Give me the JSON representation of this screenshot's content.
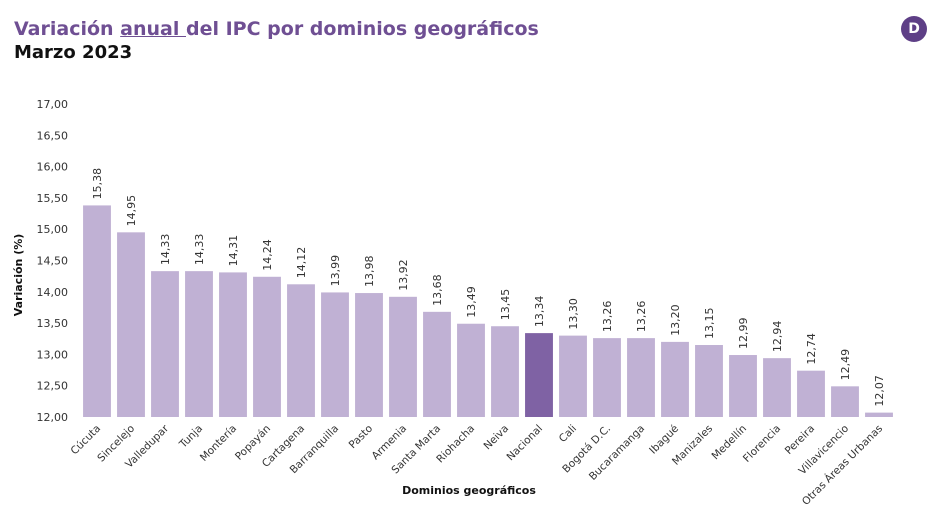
{
  "header": {
    "title_pre": "Variación ",
    "title_underlined": "anual ",
    "title_post": "del IPC por dominios geográficos",
    "subtitle": "Marzo 2023",
    "logo_letter": "D"
  },
  "colors": {
    "bar": "#c0b1d4",
    "highlight": "#7f62a4",
    "title": "#6f4f93",
    "logo": "#5e3f86"
  },
  "chart_data": {
    "type": "bar",
    "title": "Variación anual del IPC por dominios geográficos",
    "subtitle": "Marzo 2023",
    "xlabel": "Dominios geográficos",
    "ylabel": "Variación (%)",
    "ylim": [
      12,
      17
    ],
    "yticks": [
      "12,00",
      "12,50",
      "13,00",
      "13,50",
      "14,00",
      "14,50",
      "15,00",
      "15,50",
      "16,00",
      "16,50",
      "17,00"
    ],
    "grid": false,
    "categories": [
      "Cúcuta",
      "Sincelejo",
      "Valledupar",
      "Tunja",
      "Montería",
      "Popayán",
      "Cartagena",
      "Barranquilla",
      "Pasto",
      "Armenia",
      "Santa Marta",
      "Riohacha",
      "Neiva",
      "Nacional",
      "Cali",
      "Bogotá D.C.",
      "Bucaramanga",
      "Ibagué",
      "Manizales",
      "Medellín",
      "Florencia",
      "Pereira",
      "Villavicencio",
      "Otras Áreas Urbanas"
    ],
    "values": [
      15.38,
      14.95,
      14.33,
      14.33,
      14.31,
      14.24,
      14.12,
      13.99,
      13.98,
      13.92,
      13.68,
      13.49,
      13.45,
      13.34,
      13.3,
      13.26,
      13.26,
      13.2,
      13.15,
      12.99,
      12.94,
      12.74,
      12.49,
      12.07
    ],
    "value_labels": [
      "15,38",
      "14,95",
      "14,33",
      "14,33",
      "14,31",
      "14,24",
      "14,12",
      "13,99",
      "13,98",
      "13,92",
      "13,68",
      "13,49",
      "13,45",
      "13,34",
      "13,30",
      "13,26",
      "13,26",
      "13,20",
      "13,15",
      "12,99",
      "12,94",
      "12,74",
      "12,49",
      "12,07"
    ],
    "highlight": "Nacional"
  }
}
